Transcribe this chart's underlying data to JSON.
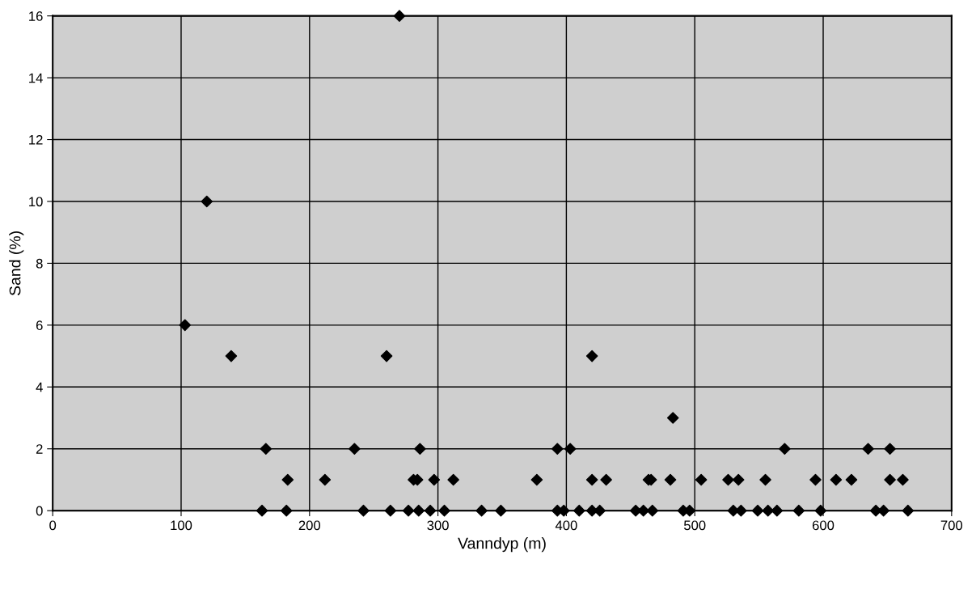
{
  "chart_data": {
    "type": "scatter",
    "xlabel": "Vanndyp (m)",
    "ylabel": "Sand (%)",
    "xlim": [
      0,
      700
    ],
    "xticks": [
      0,
      100,
      200,
      300,
      400,
      500,
      600,
      700
    ],
    "ylim": [
      0,
      16
    ],
    "yticks": [
      0,
      2,
      4,
      6,
      8,
      10,
      12,
      14,
      16
    ],
    "grid": true,
    "marker": "diamond",
    "series": [
      {
        "color": "#000000",
        "x": [
          103,
          120,
          139,
          166,
          163,
          182,
          183,
          212,
          235,
          242,
          260,
          263,
          270,
          277,
          281,
          284,
          285,
          286,
          294,
          297,
          305,
          312,
          334,
          349,
          377,
          393,
          393,
          398,
          403,
          410,
          420,
          420,
          420,
          426,
          431,
          454,
          460,
          464,
          466,
          467,
          481,
          483,
          491,
          496,
          505,
          526,
          530,
          534,
          536,
          549,
          555,
          557,
          564,
          570,
          581,
          594,
          598,
          610,
          622,
          635,
          641,
          647,
          652,
          652,
          662,
          666
        ],
        "values": [
          6,
          10,
          5,
          2,
          0,
          0,
          1,
          1,
          2,
          0,
          5,
          0,
          16,
          0,
          1,
          1,
          0,
          2,
          0,
          1,
          0,
          1,
          0,
          0,
          1,
          2,
          0,
          0,
          2,
          0,
          0,
          1,
          5,
          0,
          1,
          0,
          0,
          1,
          1,
          0,
          1,
          3,
          0,
          0,
          1,
          1,
          0,
          1,
          0,
          0,
          1,
          0,
          0,
          2,
          0,
          1,
          0,
          1,
          1,
          2,
          0,
          0,
          2,
          1,
          1,
          0
        ]
      }
    ]
  }
}
